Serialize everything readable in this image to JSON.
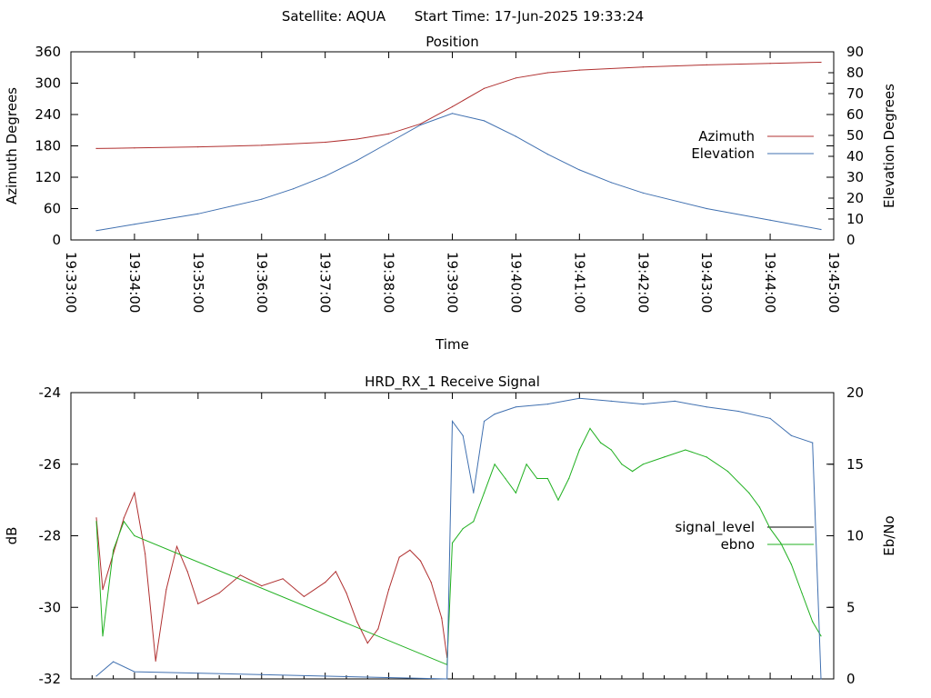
{
  "header": {
    "satellite_label": "Satellite: AQUA",
    "start_time_label": "Start Time: 17-Jun-2025 19:33:24"
  },
  "chart_data": [
    {
      "type": "line",
      "title": "Position",
      "xlabel": "Time",
      "ylabel": "Azimuth Degrees",
      "y2label": "Elevation Degrees",
      "xlim": [
        "19:33:00",
        "19:45:00"
      ],
      "xticks": [
        "19:33:00",
        "19:34:00",
        "19:35:00",
        "19:36:00",
        "19:37:00",
        "19:38:00",
        "19:39:00",
        "19:40:00",
        "19:41:00",
        "19:42:00",
        "19:43:00",
        "19:44:00",
        "19:45:00"
      ],
      "ylim": [
        0,
        360
      ],
      "yticks": [
        0,
        60,
        120,
        180,
        240,
        300,
        360
      ],
      "y2lim": [
        0,
        90
      ],
      "y2ticks": [
        0,
        10,
        20,
        30,
        40,
        50,
        60,
        70,
        80,
        90
      ],
      "legend_position": "right",
      "grid": false,
      "series": [
        {
          "name": "Azimuth",
          "axis": "left",
          "color": "#b03030",
          "points": [
            [
              "19:33:24",
              175
            ],
            [
              "19:34:00",
              176
            ],
            [
              "19:35:00",
              178
            ],
            [
              "19:36:00",
              181
            ],
            [
              "19:37:00",
              187
            ],
            [
              "19:37:30",
              193
            ],
            [
              "19:38:00",
              203
            ],
            [
              "19:38:30",
              222
            ],
            [
              "19:39:00",
              255
            ],
            [
              "19:39:30",
              290
            ],
            [
              "19:40:00",
              310
            ],
            [
              "19:40:30",
              320
            ],
            [
              "19:41:00",
              325
            ],
            [
              "19:42:00",
              331
            ],
            [
              "19:43:00",
              335
            ],
            [
              "19:44:00",
              338
            ],
            [
              "19:44:48",
              340
            ]
          ]
        },
        {
          "name": "Elevation",
          "axis": "right",
          "color": "#4070b0",
          "points": [
            [
              "19:33:24",
              4.5
            ],
            [
              "19:34:00",
              7.5
            ],
            [
              "19:35:00",
              12.5
            ],
            [
              "19:36:00",
              19.5
            ],
            [
              "19:36:30",
              24.5
            ],
            [
              "19:37:00",
              30.5
            ],
            [
              "19:37:30",
              38
            ],
            [
              "19:38:00",
              46.5
            ],
            [
              "19:38:30",
              55
            ],
            [
              "19:39:00",
              60.5
            ],
            [
              "19:39:30",
              57
            ],
            [
              "19:40:00",
              49.5
            ],
            [
              "19:40:30",
              41
            ],
            [
              "19:41:00",
              33.5
            ],
            [
              "19:41:30",
              27.5
            ],
            [
              "19:42:00",
              22.5
            ],
            [
              "19:43:00",
              15
            ],
            [
              "19:44:00",
              9.5
            ],
            [
              "19:44:48",
              5
            ]
          ]
        }
      ]
    },
    {
      "type": "line",
      "title": "HRD_RX_1 Receive Signal",
      "ylabel": "dB",
      "y2label": "Eb/No",
      "xlim": [
        "19:33:00",
        "19:45:00"
      ],
      "ylim": [
        -32,
        -24
      ],
      "yticks": [
        -32,
        -30,
        -28,
        -26,
        -24
      ],
      "y2lim": [
        0,
        20
      ],
      "y2ticks": [
        0,
        5,
        10,
        15,
        20
      ],
      "legend_position": "right",
      "grid": false,
      "series": [
        {
          "name": "signal_level",
          "axis": "left",
          "color": "#b03030",
          "points": [
            [
              "19:33:24",
              -27.5
            ],
            [
              "19:33:30",
              -29.5
            ],
            [
              "19:33:40",
              -28.5
            ],
            [
              "19:33:50",
              -27.5
            ],
            [
              "19:34:00",
              -26.8
            ],
            [
              "19:34:10",
              -28.5
            ],
            [
              "19:34:20",
              -31.5
            ],
            [
              "19:34:30",
              -29.5
            ],
            [
              "19:34:40",
              -28.3
            ],
            [
              "19:34:50",
              -29.0
            ],
            [
              "19:35:00",
              -29.9
            ],
            [
              "19:35:20",
              -29.6
            ],
            [
              "19:35:40",
              -29.1
            ],
            [
              "19:36:00",
              -29.4
            ],
            [
              "19:36:20",
              -29.2
            ],
            [
              "19:36:40",
              -29.7
            ],
            [
              "19:37:00",
              -29.3
            ],
            [
              "19:37:10",
              -29.0
            ],
            [
              "19:37:20",
              -29.6
            ],
            [
              "19:37:30",
              -30.4
            ],
            [
              "19:37:40",
              -31.0
            ],
            [
              "19:37:50",
              -30.6
            ],
            [
              "19:38:00",
              -29.5
            ],
            [
              "19:38:10",
              -28.6
            ],
            [
              "19:38:20",
              -28.4
            ],
            [
              "19:38:30",
              -28.7
            ],
            [
              "19:38:40",
              -29.3
            ],
            [
              "19:38:50",
              -30.3
            ],
            [
              "19:38:55",
              -31.4
            ]
          ]
        },
        {
          "name": "ebno",
          "axis": "right",
          "color": "#20b020",
          "points": [
            [
              "19:33:24",
              11
            ],
            [
              "19:33:30",
              3
            ],
            [
              "19:33:40",
              9
            ],
            [
              "19:33:50",
              11
            ],
            [
              "19:34:00",
              10
            ],
            [
              "19:38:55",
              1
            ],
            [
              "19:39:00",
              9.5
            ],
            [
              "19:39:10",
              10.5
            ],
            [
              "19:39:20",
              11
            ],
            [
              "19:39:30",
              13
            ],
            [
              "19:39:40",
              15
            ],
            [
              "19:39:50",
              14
            ],
            [
              "19:40:00",
              13
            ],
            [
              "19:40:10",
              15
            ],
            [
              "19:40:20",
              14
            ],
            [
              "19:40:30",
              14
            ],
            [
              "19:40:40",
              12.5
            ],
            [
              "19:40:50",
              14
            ],
            [
              "19:41:00",
              16
            ],
            [
              "19:41:10",
              17.5
            ],
            [
              "19:41:20",
              16.5
            ],
            [
              "19:41:30",
              16
            ],
            [
              "19:41:40",
              15
            ],
            [
              "19:41:50",
              14.5
            ],
            [
              "19:42:00",
              15
            ],
            [
              "19:42:20",
              15.5
            ],
            [
              "19:42:40",
              16
            ],
            [
              "19:43:00",
              15.5
            ],
            [
              "19:43:20",
              14.5
            ],
            [
              "19:43:40",
              13
            ],
            [
              "19:43:50",
              12
            ],
            [
              "19:44:00",
              10.5
            ],
            [
              "19:44:10",
              9.5
            ],
            [
              "19:44:20",
              8
            ],
            [
              "19:44:30",
              6
            ],
            [
              "19:44:40",
              4
            ],
            [
              "19:44:48",
              3
            ]
          ]
        },
        {
          "name": "",
          "axis": "right",
          "color": "#4070b0",
          "points": [
            [
              "19:33:24",
              0.2
            ],
            [
              "19:33:40",
              1.2
            ],
            [
              "19:34:00",
              0.5
            ],
            [
              "19:38:55",
              0
            ],
            [
              "19:39:00",
              18
            ],
            [
              "19:39:10",
              17
            ],
            [
              "19:39:20",
              13
            ],
            [
              "19:39:30",
              18
            ],
            [
              "19:39:40",
              18.5
            ],
            [
              "19:40:00",
              19
            ],
            [
              "19:40:30",
              19.2
            ],
            [
              "19:41:00",
              19.6
            ],
            [
              "19:41:30",
              19.4
            ],
            [
              "19:42:00",
              19.2
            ],
            [
              "19:42:30",
              19.4
            ],
            [
              "19:43:00",
              19
            ],
            [
              "19:43:30",
              18.7
            ],
            [
              "19:44:00",
              18.2
            ],
            [
              "19:44:20",
              17
            ],
            [
              "19:44:40",
              16.5
            ],
            [
              "19:44:48",
              0
            ]
          ]
        }
      ]
    }
  ]
}
